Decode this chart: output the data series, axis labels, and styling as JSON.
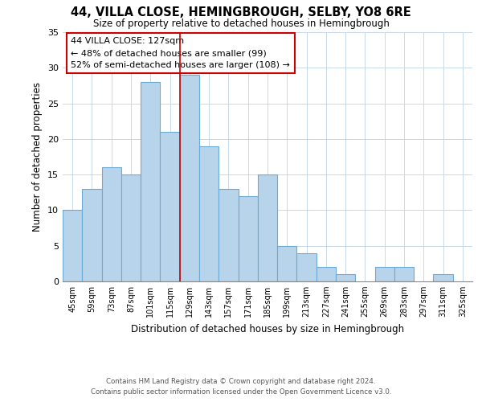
{
  "title": "44, VILLA CLOSE, HEMINGBROUGH, SELBY, YO8 6RE",
  "subtitle": "Size of property relative to detached houses in Hemingbrough",
  "xlabel": "Distribution of detached houses by size in Hemingbrough",
  "ylabel": "Number of detached properties",
  "bin_labels": [
    "45sqm",
    "59sqm",
    "73sqm",
    "87sqm",
    "101sqm",
    "115sqm",
    "129sqm",
    "143sqm",
    "157sqm",
    "171sqm",
    "185sqm",
    "199sqm",
    "213sqm",
    "227sqm",
    "241sqm",
    "255sqm",
    "269sqm",
    "283sqm",
    "297sqm",
    "311sqm",
    "325sqm"
  ],
  "bar_heights": [
    10,
    13,
    16,
    15,
    28,
    21,
    29,
    19,
    13,
    12,
    15,
    5,
    4,
    2,
    1,
    0,
    2,
    2,
    0,
    1,
    0
  ],
  "bar_color": "#b8d4ea",
  "bar_edge_color": "#6aaad4",
  "highlight_bin_index": 6,
  "highlight_line_color": "#cc0000",
  "ylim": [
    0,
    35
  ],
  "yticks": [
    0,
    5,
    10,
    15,
    20,
    25,
    30,
    35
  ],
  "annotation_text": "44 VILLA CLOSE: 127sqm\n← 48% of detached houses are smaller (99)\n52% of semi-detached houses are larger (108) →",
  "annotation_box_color": "#ffffff",
  "annotation_box_edge_color": "#cc0000",
  "footer_line1": "Contains HM Land Registry data © Crown copyright and database right 2024.",
  "footer_line2": "Contains public sector information licensed under the Open Government Licence v3.0.",
  "background_color": "#ffffff",
  "grid_color": "#c8d8ec"
}
